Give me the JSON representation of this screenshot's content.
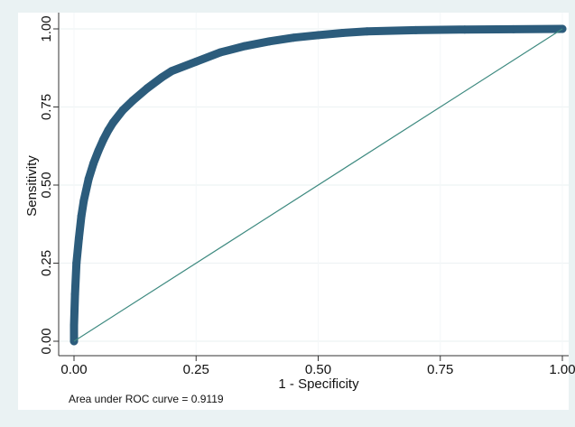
{
  "chart_data": {
    "type": "line",
    "title": "",
    "xlabel": "1 - Specificity",
    "ylabel": "Sensitivity",
    "xlim": [
      0,
      1
    ],
    "ylim": [
      0,
      1
    ],
    "x_ticks": [
      "0.00",
      "0.25",
      "0.50",
      "0.75",
      "1.00"
    ],
    "y_ticks": [
      "0.00",
      "0.25",
      "0.50",
      "0.75",
      "1.00"
    ],
    "grid": true,
    "note": "Area under ROC curve = 0.9119",
    "series": [
      {
        "role": "roc-curve",
        "color": "#2c5c7c",
        "x": [
          0,
          0,
          0.002,
          0.005,
          0.01,
          0.015,
          0.02,
          0.03,
          0.04,
          0.05,
          0.06,
          0.07,
          0.08,
          0.1,
          0.12,
          0.15,
          0.18,
          0.2,
          0.25,
          0.3,
          0.35,
          0.4,
          0.45,
          0.5,
          0.55,
          0.6,
          0.7,
          0.8,
          0.9,
          1.0
        ],
        "y": [
          0,
          0.05,
          0.15,
          0.25,
          0.33,
          0.4,
          0.45,
          0.52,
          0.57,
          0.61,
          0.645,
          0.675,
          0.7,
          0.74,
          0.77,
          0.81,
          0.845,
          0.865,
          0.895,
          0.925,
          0.945,
          0.96,
          0.972,
          0.98,
          0.987,
          0.992,
          0.996,
          0.998,
          0.999,
          1.0
        ]
      },
      {
        "role": "reference-line",
        "color": "#3e8a80",
        "x": [
          0,
          1
        ],
        "y": [
          0,
          1
        ]
      }
    ]
  }
}
